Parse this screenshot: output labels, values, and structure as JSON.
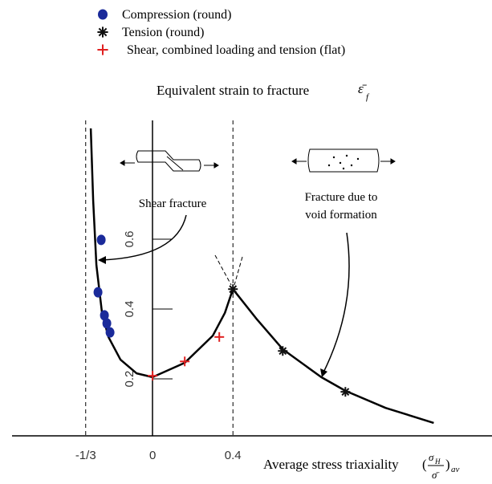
{
  "chart_data": {
    "type": "scatter",
    "title": "Equivalent strain to fracture",
    "title_symbol": "ε̄",
    "title_symbol_sub": "f",
    "xlabel": "Average stress triaxiality",
    "xlabel_symbol": {
      "open": "(",
      "num": "σ",
      "num_sub": "H",
      "den": "σ̄",
      "close": ")",
      "sub": "av"
    },
    "xlim": [
      -0.7,
      1.69
    ],
    "ylim": [
      0.037,
      0.94
    ],
    "xticks": [
      {
        "value": -0.3333,
        "label": "-1/3"
      },
      0,
      0.4
    ],
    "yticks": [
      0.2,
      0.4,
      0.6
    ],
    "series": [
      {
        "name": "Compression (round)",
        "color": "#1a2a9a",
        "marker": "circle",
        "x": [
          -0.256,
          -0.272,
          -0.24,
          -0.228,
          -0.212
        ],
        "values": [
          0.598,
          0.448,
          0.382,
          0.359,
          0.333
        ]
      },
      {
        "name": "Tension (round)",
        "color": "#111111",
        "marker": "star",
        "x": [
          0.4,
          0.648,
          0.96
        ],
        "values": [
          0.457,
          0.28,
          0.163
        ]
      },
      {
        "name": "Shear, combined loading and tension (flat)",
        "color": "#e02020",
        "marker": "plus",
        "x": [
          0,
          0.16,
          0.332
        ],
        "values": [
          0.209,
          0.25,
          0.32
        ]
      }
    ],
    "curve": {
      "color": "#000000",
      "x": [
        -0.308,
        -0.296,
        -0.28,
        -0.252,
        -0.22,
        -0.16,
        -0.08,
        0,
        0.16,
        0.3,
        0.36,
        0.4,
        0.52,
        0.648,
        0.84,
        0.96,
        1.16,
        1.4
      ],
      "y": [
        0.917,
        0.71,
        0.526,
        0.389,
        0.32,
        0.255,
        0.216,
        0.205,
        0.246,
        0.324,
        0.389,
        0.457,
        0.37,
        0.285,
        0.205,
        0.166,
        0.117,
        0.074
      ]
    },
    "annotations": [
      "Shear fracture",
      "Fracture due to",
      "void formation"
    ]
  }
}
